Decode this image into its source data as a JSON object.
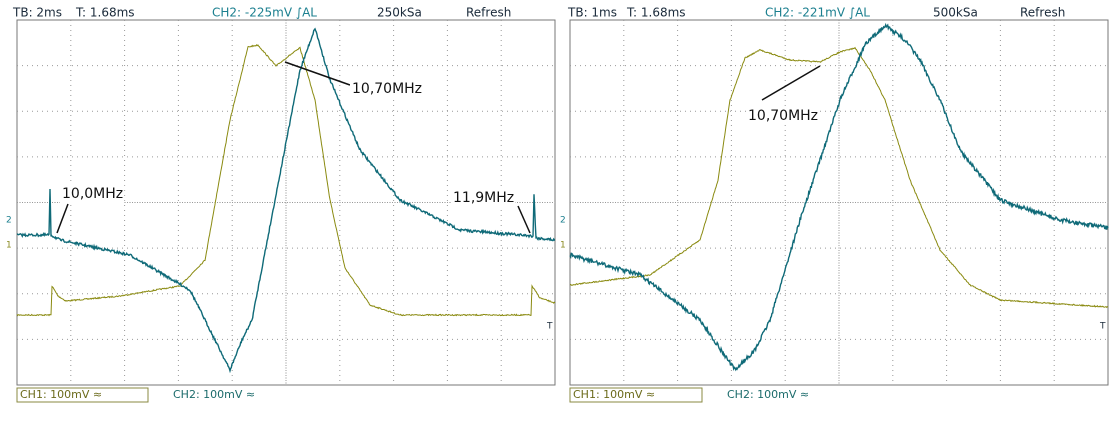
{
  "panels": [
    {
      "header": {
        "timebase": "TB: 2ms",
        "trigger_time": "T: 1.68ms",
        "trigger": "CH2: -225mV ∫AL",
        "sample_rate": "250kSa",
        "mode": "Refresh"
      },
      "annotations": [
        "10,0MHz",
        "10,70MHz",
        "11,9MHz"
      ],
      "markers": {
        "ch2": "2",
        "ch1": "1",
        "trigger": "T"
      },
      "footer": {
        "ch1": "CH1: 100mV ≈",
        "ch2": "CH2: 100mV ≈"
      }
    },
    {
      "header": {
        "timebase": "TB: 1ms",
        "trigger_time": "T: 1.68ms",
        "trigger": "CH2: -221mV ∫AL",
        "sample_rate": "500kSa",
        "mode": "Refresh"
      },
      "annotations": [
        "10,70MHz"
      ],
      "markers": {
        "ch2": "2",
        "ch1": "1",
        "trigger": "T"
      },
      "footer": {
        "ch1": "CH1: 100mV ≈",
        "ch2": "CH2: 100mV ≈"
      }
    }
  ]
}
